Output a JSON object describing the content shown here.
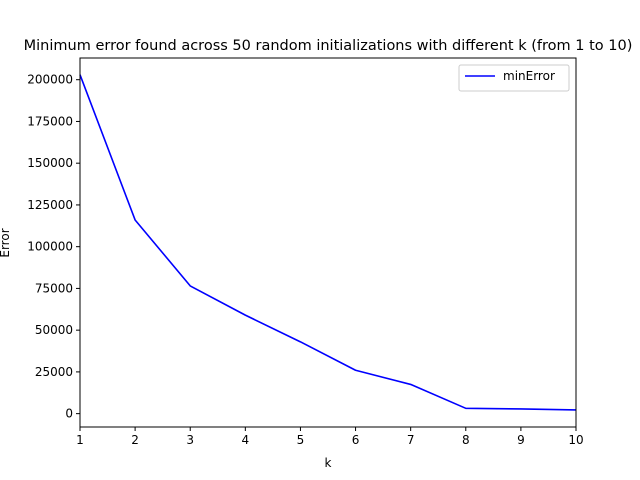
{
  "chart_data": {
    "type": "line",
    "title": "Minimum error found across 50 random initializations with different k (from 1 to 10)",
    "xlabel": "k",
    "ylabel": "Error",
    "x": [
      1,
      2,
      3,
      4,
      5,
      6,
      7,
      8,
      9,
      10
    ],
    "series": [
      {
        "name": "minError",
        "values": [
          203000,
          116000,
          76500,
          59000,
          43000,
          26000,
          17500,
          3200,
          2800,
          2200
        ],
        "color": "#0000ff"
      }
    ],
    "xlim": [
      1,
      10
    ],
    "ylim": [
      -8000,
      213000
    ],
    "x_ticks": [
      1,
      2,
      3,
      4,
      5,
      6,
      7,
      8,
      9,
      10
    ],
    "y_ticks": [
      0,
      25000,
      50000,
      75000,
      100000,
      125000,
      150000,
      175000,
      200000
    ],
    "grid": false,
    "legend_position": "top-right"
  }
}
